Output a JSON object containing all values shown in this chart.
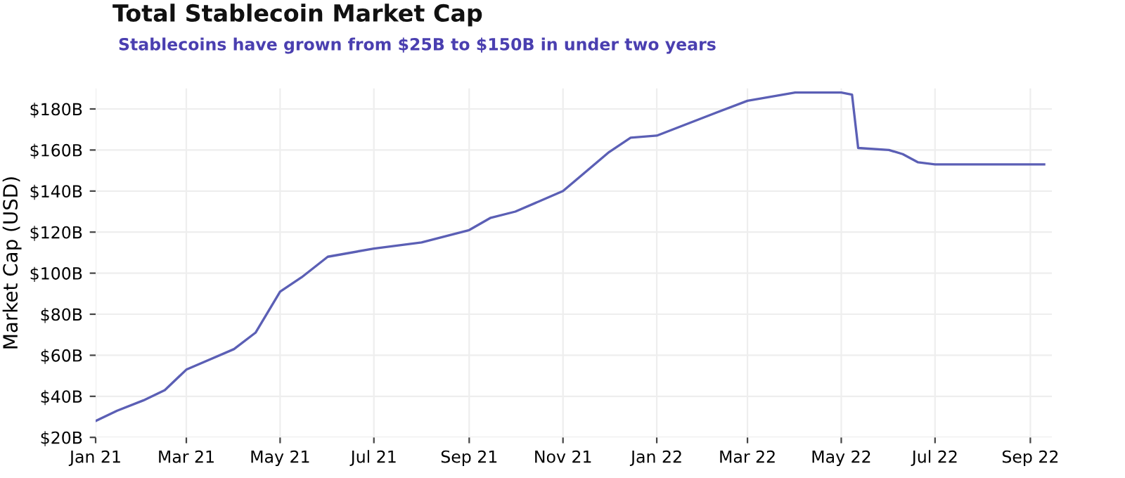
{
  "chart_data": {
    "type": "line",
    "title": "Total Stablecoin Market Cap",
    "subtitle": "Stablecoins have grown from $25B to $150B in under two years",
    "ylabel": "Market Cap (USD)",
    "x": [
      "2021-01-01",
      "2021-01-15",
      "2021-02-01",
      "2021-02-15",
      "2021-03-01",
      "2021-04-01",
      "2021-04-15",
      "2021-05-01",
      "2021-05-15",
      "2021-06-01",
      "2021-07-01",
      "2021-08-01",
      "2021-09-01",
      "2021-09-15",
      "2021-10-01",
      "2021-11-01",
      "2021-12-01",
      "2021-12-15",
      "2022-01-01",
      "2022-02-01",
      "2022-03-01",
      "2022-04-01",
      "2022-05-01",
      "2022-05-08",
      "2022-05-12",
      "2022-06-01",
      "2022-06-10",
      "2022-06-20",
      "2022-07-01",
      "2022-08-01",
      "2022-09-01",
      "2022-09-10"
    ],
    "series": [
      {
        "color": "#5b5fb5",
        "values": [
          28,
          33,
          38,
          43,
          53,
          63,
          71,
          91,
          98,
          108,
          112,
          115,
          121,
          127,
          130,
          140,
          159,
          166,
          167,
          176,
          184,
          188,
          188,
          187,
          161,
          160,
          158,
          154,
          153,
          153,
          153,
          153
        ]
      }
    ],
    "xlim": [
      "2021-01-01",
      "2022-09-15"
    ],
    "xticks": [
      {
        "value": "2021-01-01",
        "label": "Jan 21"
      },
      {
        "value": "2021-03-01",
        "label": "Mar 21"
      },
      {
        "value": "2021-05-01",
        "label": "May 21"
      },
      {
        "value": "2021-07-01",
        "label": "Jul 21"
      },
      {
        "value": "2021-09-01",
        "label": "Sep 21"
      },
      {
        "value": "2021-11-01",
        "label": "Nov 21"
      },
      {
        "value": "2022-01-01",
        "label": "Jan 22"
      },
      {
        "value": "2022-03-01",
        "label": "Mar 22"
      },
      {
        "value": "2022-05-01",
        "label": "May 22"
      },
      {
        "value": "2022-07-01",
        "label": "Jul 22"
      },
      {
        "value": "2022-09-01",
        "label": "Sep 22"
      }
    ],
    "ylim": [
      20,
      190
    ],
    "yticks": [
      {
        "value": 20,
        "label": "$20B"
      },
      {
        "value": 40,
        "label": "$40B"
      },
      {
        "value": 60,
        "label": "$60B"
      },
      {
        "value": 80,
        "label": "$80B"
      },
      {
        "value": 100,
        "label": "$100B"
      },
      {
        "value": 120,
        "label": "$120B"
      },
      {
        "value": 140,
        "label": "$140B"
      },
      {
        "value": 160,
        "label": "$160B"
      },
      {
        "value": 180,
        "label": "$180B"
      }
    ],
    "grid": true,
    "line_style": "solid",
    "marker": "none"
  }
}
